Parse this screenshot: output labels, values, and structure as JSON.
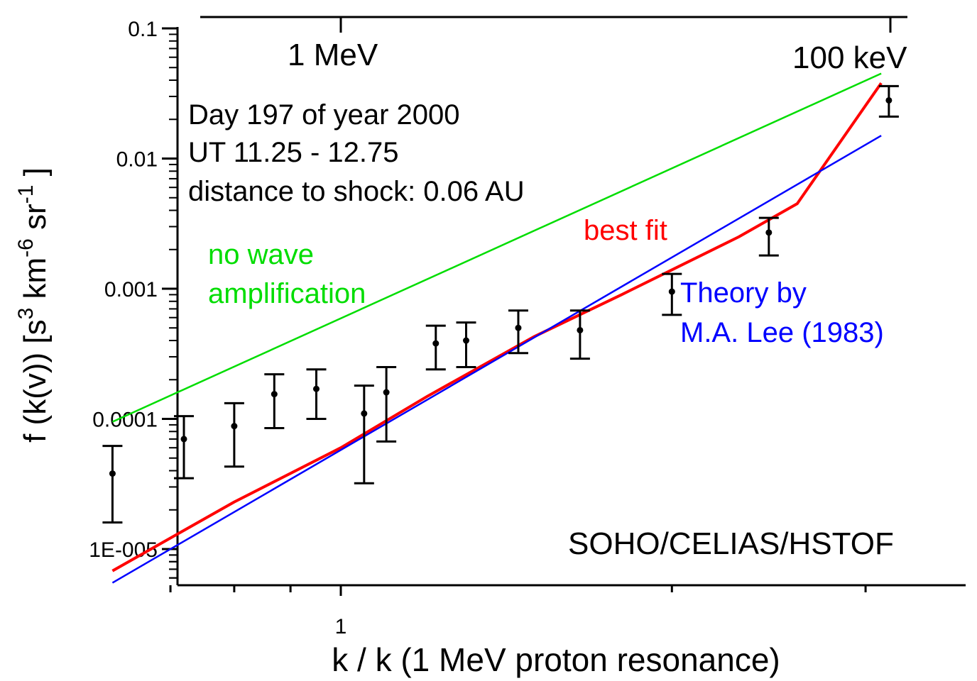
{
  "chart_data": {
    "type": "line",
    "xlabel": "k / k (1 MeV proton resonance)",
    "ylabel": {
      "prefix": "f (k(v))  [s",
      "sup1": "3",
      "mid1": " km",
      "sup2": "-6",
      "mid2": " sr",
      "sup3": "-1",
      "suffix": " ]"
    },
    "x_scale": "log",
    "y_scale": "log",
    "xlim": [
      0.6,
      3.3
    ],
    "ylim": [
      6e-06,
      0.1
    ],
    "y_ticks": [
      {
        "value": 0.1,
        "label": "0.1"
      },
      {
        "value": 0.01,
        "label": "0.01"
      },
      {
        "value": 0.001,
        "label": "0.001"
      },
      {
        "value": 0.0001,
        "label": "0.0001"
      },
      {
        "value": 1e-05,
        "label": "1E-005"
      }
    ],
    "x_ticks": [
      {
        "value": 1,
        "label": "1"
      }
    ],
    "top_axis": {
      "labels": [
        {
          "text": "1 MeV",
          "x": 1.0
        },
        {
          "text": "100 keV",
          "x": 3.16
        }
      ]
    },
    "series": [
      {
        "name": "no wave amplification",
        "color": "#00dd00",
        "x": [
          0.62,
          3.1
        ],
        "y": [
          9.5e-05,
          0.045
        ]
      },
      {
        "name": "best fit",
        "color": "#ff0000",
        "x": [
          0.62,
          0.8,
          1.0,
          1.2,
          1.5,
          1.8,
          2.3,
          2.6,
          3.1
        ],
        "y": [
          6.8e-06,
          2.3e-05,
          6e-05,
          0.00015,
          0.00043,
          0.0009,
          0.0025,
          0.0045,
          0.038
        ]
      },
      {
        "name": "Theory by M.A. Lee (1983)",
        "color": "#0000ff",
        "x": [
          0.62,
          3.1
        ],
        "y": [
          5.5e-06,
          0.015
        ]
      }
    ],
    "data_points": [
      {
        "x": 0.62,
        "y": 3.8e-05,
        "ylow": 1.6e-05,
        "yhigh": 6.2e-05
      },
      {
        "x": 0.72,
        "y": 7e-05,
        "ylow": 3.5e-05,
        "yhigh": 0.000105
      },
      {
        "x": 0.8,
        "y": 8.8e-05,
        "ylow": 4.3e-05,
        "yhigh": 0.000132
      },
      {
        "x": 0.87,
        "y": 0.000155,
        "ylow": 8.5e-05,
        "yhigh": 0.00022
      },
      {
        "x": 0.95,
        "y": 0.00017,
        "ylow": 0.0001,
        "yhigh": 0.00024
      },
      {
        "x": 1.05,
        "y": 0.00011,
        "ylow": 3.2e-05,
        "yhigh": 0.00018
      },
      {
        "x": 1.1,
        "y": 0.00016,
        "ylow": 6.7e-05,
        "yhigh": 0.00025
      },
      {
        "x": 1.22,
        "y": 0.00038,
        "ylow": 0.00024,
        "yhigh": 0.00052
      },
      {
        "x": 1.3,
        "y": 0.0004,
        "ylow": 0.00025,
        "yhigh": 0.00055
      },
      {
        "x": 1.45,
        "y": 0.0005,
        "ylow": 0.00032,
        "yhigh": 0.00068
      },
      {
        "x": 1.65,
        "y": 0.00048,
        "ylow": 0.00029,
        "yhigh": 0.00068
      },
      {
        "x": 2.0,
        "y": 0.00095,
        "ylow": 0.00063,
        "yhigh": 0.0013
      },
      {
        "x": 2.45,
        "y": 0.0027,
        "ylow": 0.0018,
        "yhigh": 0.0035
      },
      {
        "x": 3.15,
        "y": 0.028,
        "ylow": 0.021,
        "yhigh": 0.036
      }
    ],
    "annotations": {
      "info": [
        "Day 197 of year 2000",
        "UT 11.25 - 12.75",
        "distance to shock: 0.06 AU"
      ],
      "no_wave": [
        "no wave",
        "amplification"
      ],
      "best_fit": "best fit",
      "theory": [
        "Theory by",
        "M.A. Lee (1983)"
      ],
      "instrument": "SOHO/CELIAS/HSTOF"
    },
    "grid": false
  }
}
